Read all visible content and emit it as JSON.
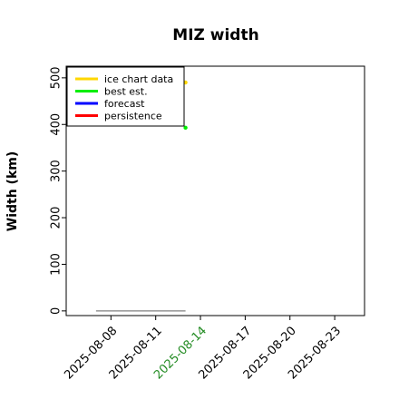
{
  "chart_data": {
    "type": "line",
    "title": "MIZ width",
    "xlabel": "",
    "ylabel": "Width (km)",
    "x_ticks": [
      "2025-08-08",
      "2025-08-11",
      "2025-08-14",
      "2025-08-17",
      "2025-08-20",
      "2025-08-23"
    ],
    "x_tick_colors": [
      "#000000",
      "#000000",
      "#228b22",
      "#000000",
      "#000000",
      "#000000"
    ],
    "xlim": [
      "2025-08-05",
      "2025-08-25"
    ],
    "y_ticks": [
      0,
      100,
      200,
      300,
      400,
      500
    ],
    "ylim": [
      -10,
      525
    ],
    "grid": false,
    "legend": {
      "placement": "top-left",
      "entries": [
        {
          "name": "ice chart data",
          "color": "#ffd700"
        },
        {
          "name": "best est.",
          "color": "#00ee00"
        },
        {
          "name": "forecast",
          "color": "#0000ff"
        },
        {
          "name": "persistence",
          "color": "#ff0000"
        }
      ]
    },
    "series": [
      {
        "name": "ice chart data",
        "color": "#ffd700",
        "points": [
          {
            "x": "2025-08-13",
            "y": 490
          }
        ]
      },
      {
        "name": "best est.",
        "color": "#00ee00",
        "points": [
          {
            "x": "2025-08-13",
            "y": 393
          }
        ]
      }
    ],
    "reference_line": {
      "color": "#808080",
      "y": 0,
      "x_start": "2025-08-07",
      "x_end": "2025-08-13"
    }
  }
}
